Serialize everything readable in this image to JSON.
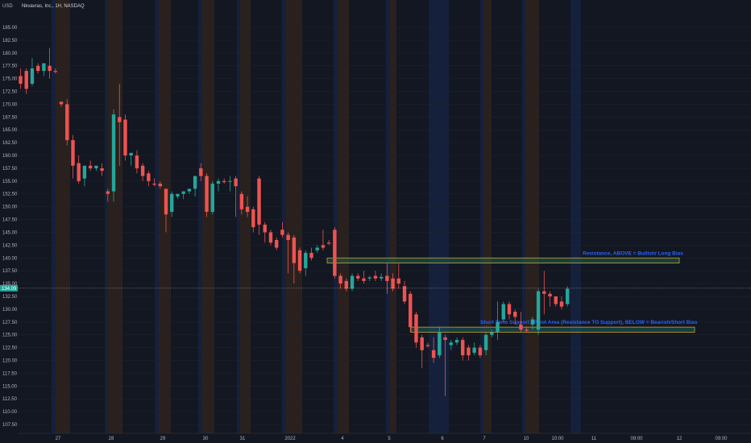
{
  "header": {
    "symbol_title": "Nkvavras, Inc., 1H, NASDAQ",
    "currency": "USD"
  },
  "last_price_label": "134.09",
  "colors": {
    "background": "#131722",
    "up": "#26a69a",
    "down": "#ef5350",
    "session_orange": "#f57c00",
    "session_blue": "#2962ff",
    "zone_border": "#c9a227",
    "zone_fill": "#1b5e58",
    "annotation": "#2962ff"
  },
  "chart_data": {
    "type": "candlestick",
    "title": "Nkvavras, Inc., 1H, NASDAQ",
    "ylim": [
      105,
      186
    ],
    "y_ticks": [
      185,
      182.5,
      180,
      177.5,
      175,
      172.5,
      170,
      167.5,
      165,
      162.5,
      160,
      157.5,
      155,
      152.5,
      150,
      147.5,
      145,
      142.5,
      140,
      137.5,
      135,
      132.5,
      130,
      127.5,
      125,
      122.5,
      120,
      117.5,
      115,
      112.5,
      110,
      107.5
    ],
    "x_labels": [
      "27",
      "28",
      "29",
      "30",
      "31",
      "2022",
      "4",
      "5",
      "6",
      "7",
      "10",
      "10:00",
      "11",
      "09:00",
      "12",
      "09:00"
    ],
    "last_price": 134.09,
    "candles": [
      {
        "o": 175.5,
        "h": 177.0,
        "c": 174.0,
        "l": 173.0
      },
      {
        "o": 176.5,
        "h": 177.0,
        "c": 173.0,
        "l": 172.0
      },
      {
        "o": 174.0,
        "h": 179.0,
        "c": 177.0,
        "l": 173.5
      },
      {
        "o": 177.5,
        "h": 178.0,
        "c": 176.5,
        "l": 176.0
      },
      {
        "o": 176.5,
        "h": 177.5,
        "c": 178.0,
        "l": 175.5
      },
      {
        "o": 177.5,
        "h": 181.0,
        "c": 176.5,
        "l": 175.0
      },
      {
        "o": 176.5,
        "h": 177.0,
        "c": 176.3,
        "l": 176.0
      },
      {
        "o": 170.5,
        "h": 170.5,
        "c": 170.0,
        "l": 169.5
      },
      {
        "o": 170.0,
        "h": 171.0,
        "c": 163.0,
        "l": 162.0
      },
      {
        "o": 163.0,
        "h": 164.0,
        "c": 158.0,
        "l": 155.5
      },
      {
        "o": 158.5,
        "h": 160.0,
        "c": 155.0,
        "l": 154.5
      },
      {
        "o": 155.5,
        "h": 158.0,
        "c": 158.0,
        "l": 154.0
      },
      {
        "o": 158.0,
        "h": 159.0,
        "c": 157.5,
        "l": 157.0
      },
      {
        "o": 157.5,
        "h": 158.0,
        "c": 158.0,
        "l": 157.0
      },
      {
        "o": 157.5,
        "h": 158.5,
        "c": 157.0,
        "l": 156.0
      },
      {
        "o": 153.0,
        "h": 153.5,
        "c": 152.5,
        "l": 151.0
      },
      {
        "o": 153.0,
        "h": 169.0,
        "c": 168.0,
        "l": 151.0
      },
      {
        "o": 167.5,
        "h": 174.0,
        "c": 166.5,
        "l": 158.0
      },
      {
        "o": 167.0,
        "h": 168.0,
        "c": 160.0,
        "l": 159.0
      },
      {
        "o": 160.0,
        "h": 160.5,
        "c": 160.5,
        "l": 158.0
      },
      {
        "o": 160.0,
        "h": 161.0,
        "c": 157.5,
        "l": 156.5
      },
      {
        "o": 158.0,
        "h": 158.5,
        "c": 156.0,
        "l": 155.0
      },
      {
        "o": 156.5,
        "h": 157.0,
        "c": 155.0,
        "l": 154.0
      },
      {
        "o": 154.5,
        "h": 155.5,
        "c": 154.3,
        "l": 154.0
      },
      {
        "o": 154.5,
        "h": 155.0,
        "c": 154.0,
        "l": 153.5
      },
      {
        "o": 153.5,
        "h": 153.5,
        "c": 148.5,
        "l": 145.0
      },
      {
        "o": 149.0,
        "h": 153.0,
        "c": 152.5,
        "l": 148.0
      },
      {
        "o": 152.0,
        "h": 152.5,
        "c": 152.5,
        "l": 151.5
      },
      {
        "o": 152.5,
        "h": 153.0,
        "c": 153.0,
        "l": 151.5
      },
      {
        "o": 153.0,
        "h": 153.5,
        "c": 153.5,
        "l": 152.5
      },
      {
        "o": 153.5,
        "h": 156.0,
        "c": 156.0,
        "l": 152.0
      },
      {
        "o": 157.5,
        "h": 158.5,
        "c": 156.0,
        "l": 155.0
      },
      {
        "o": 156.0,
        "h": 156.5,
        "c": 149.0,
        "l": 148.0
      },
      {
        "o": 149.0,
        "h": 155.0,
        "c": 154.5,
        "l": 148.5
      },
      {
        "o": 154.5,
        "h": 155.5,
        "c": 155.0,
        "l": 153.0
      },
      {
        "o": 155.0,
        "h": 155.5,
        "c": 154.8,
        "l": 154.5
      },
      {
        "o": 155.0,
        "h": 156.0,
        "c": 155.0,
        "l": 153.0
      },
      {
        "o": 155.5,
        "h": 156.0,
        "c": 154.0,
        "l": 148.0
      },
      {
        "o": 152.5,
        "h": 153.0,
        "c": 149.5,
        "l": 148.5
      },
      {
        "o": 150.0,
        "h": 152.0,
        "c": 149.0,
        "l": 148.0
      },
      {
        "o": 149.5,
        "h": 150.0,
        "c": 146.0,
        "l": 145.0
      },
      {
        "o": 155.5,
        "h": 156.0,
        "c": 146.5,
        "l": 144.5
      },
      {
        "o": 146.5,
        "h": 147.0,
        "c": 145.0,
        "l": 143.0
      },
      {
        "o": 145.0,
        "h": 145.5,
        "c": 143.0,
        "l": 142.5
      },
      {
        "o": 143.5,
        "h": 144.0,
        "c": 142.0,
        "l": 141.5
      },
      {
        "o": 145.5,
        "h": 147.0,
        "c": 144.5,
        "l": 144.0
      },
      {
        "o": 144.5,
        "h": 145.0,
        "c": 143.5,
        "l": 137.0
      },
      {
        "o": 144.0,
        "h": 144.5,
        "c": 139.0,
        "l": 135.0
      },
      {
        "o": 141.5,
        "h": 142.0,
        "c": 137.5,
        "l": 137.0
      },
      {
        "o": 138.0,
        "h": 141.5,
        "c": 141.0,
        "l": 136.5
      },
      {
        "o": 141.0,
        "h": 142.0,
        "c": 140.0,
        "l": 139.5
      },
      {
        "o": 141.5,
        "h": 142.5,
        "c": 142.0,
        "l": 141.0
      },
      {
        "o": 142.5,
        "h": 145.5,
        "c": 142.0,
        "l": 141.5
      },
      {
        "o": 143.0,
        "h": 143.5,
        "c": 142.8,
        "l": 142.5
      },
      {
        "o": 145.5,
        "h": 146.0,
        "c": 136.5,
        "l": 136.0
      },
      {
        "o": 136.5,
        "h": 137.0,
        "c": 135.0,
        "l": 134.0
      },
      {
        "o": 135.5,
        "h": 136.0,
        "c": 134.0,
        "l": 133.5
      },
      {
        "o": 134.0,
        "h": 137.0,
        "c": 136.5,
        "l": 133.5
      },
      {
        "o": 136.5,
        "h": 137.0,
        "c": 136.0,
        "l": 135.5
      },
      {
        "o": 136.0,
        "h": 137.5,
        "c": 135.5,
        "l": 135.0
      },
      {
        "o": 136.0,
        "h": 136.5,
        "c": 136.2,
        "l": 135.5
      },
      {
        "o": 136.5,
        "h": 137.5,
        "c": 136.0,
        "l": 135.5
      },
      {
        "o": 136.0,
        "h": 137.0,
        "c": 136.3,
        "l": 135.5
      },
      {
        "o": 136.5,
        "h": 139.0,
        "c": 135.5,
        "l": 133.0
      },
      {
        "o": 136.0,
        "h": 137.0,
        "c": 134.0,
        "l": 133.5
      },
      {
        "o": 136.0,
        "h": 139.0,
        "c": 135.0,
        "l": 134.0
      },
      {
        "o": 134.5,
        "h": 135.5,
        "c": 131.5,
        "l": 131.0
      },
      {
        "o": 133.0,
        "h": 133.5,
        "c": 126.5,
        "l": 125.5
      },
      {
        "o": 129.0,
        "h": 129.5,
        "c": 123.5,
        "l": 122.5
      },
      {
        "o": 124.5,
        "h": 125.0,
        "c": 122.0,
        "l": 118.5
      },
      {
        "o": 123.0,
        "h": 123.5,
        "c": 122.8,
        "l": 122.5
      },
      {
        "o": 122.0,
        "h": 124.5,
        "c": 120.5,
        "l": 119.5
      },
      {
        "o": 121.0,
        "h": 126.5,
        "c": 125.5,
        "l": 120.5
      },
      {
        "o": 124.5,
        "h": 125.0,
        "c": 124.0,
        "l": 113.0
      },
      {
        "o": 123.0,
        "h": 124.0,
        "c": 123.5,
        "l": 122.0
      },
      {
        "o": 123.5,
        "h": 124.5,
        "c": 124.0,
        "l": 123.0
      },
      {
        "o": 124.0,
        "h": 124.5,
        "c": 121.0,
        "l": 120.0
      },
      {
        "o": 122.5,
        "h": 123.0,
        "c": 121.0,
        "l": 120.0
      },
      {
        "o": 121.5,
        "h": 123.5,
        "c": 122.5,
        "l": 121.0
      },
      {
        "o": 122.5,
        "h": 123.0,
        "c": 121.0,
        "l": 120.5
      },
      {
        "o": 122.0,
        "h": 125.5,
        "c": 125.0,
        "l": 121.0
      },
      {
        "o": 125.0,
        "h": 126.0,
        "c": 125.5,
        "l": 124.5
      },
      {
        "o": 125.5,
        "h": 131.5,
        "c": 127.5,
        "l": 124.0
      },
      {
        "o": 128.0,
        "h": 131.5,
        "c": 131.0,
        "l": 127.5
      },
      {
        "o": 131.0,
        "h": 131.5,
        "c": 129.0,
        "l": 128.0
      },
      {
        "o": 129.5,
        "h": 130.0,
        "c": 128.5,
        "l": 127.0
      },
      {
        "o": 127.0,
        "h": 129.5,
        "c": 126.0,
        "l": 125.5
      },
      {
        "o": 126.0,
        "h": 126.5,
        "c": 125.8,
        "l": 125.5
      },
      {
        "o": 127.0,
        "h": 128.5,
        "c": 128.0,
        "l": 126.0
      },
      {
        "o": 126.0,
        "h": 134.0,
        "c": 133.5,
        "l": 125.0
      },
      {
        "o": 133.5,
        "h": 137.5,
        "c": 133.0,
        "l": 129.0
      },
      {
        "o": 133.0,
        "h": 133.5,
        "c": 132.5,
        "l": 130.5
      },
      {
        "o": 132.5,
        "h": 132.5,
        "c": 131.0,
        "l": 130.5
      },
      {
        "o": 131.5,
        "h": 132.5,
        "c": 130.5,
        "l": 130.0
      },
      {
        "o": 131.0,
        "h": 134.5,
        "c": 134.0,
        "l": 130.5
      }
    ],
    "zones": [
      {
        "top": 140.0,
        "bottom": 139.0,
        "label": "Resistance, ABOVE = Bullish/ Long Bias"
      },
      {
        "top": 126.5,
        "bottom": 125.5,
        "label": "Short Term Support / Pivot Area (Resistance TO Support), BELOW = Bearish/Short Bias"
      }
    ]
  }
}
